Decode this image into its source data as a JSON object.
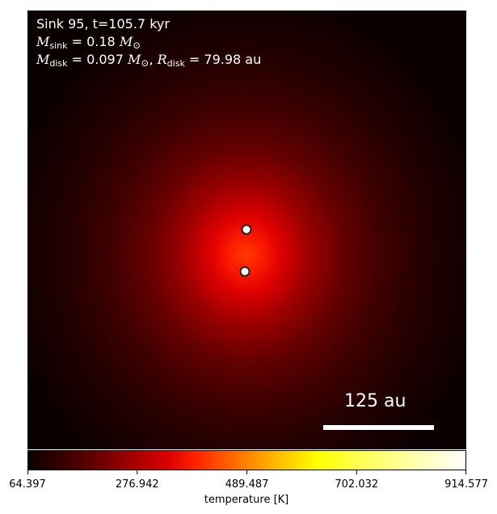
{
  "panel": {
    "sink_title": "Sink 95, t=105.7 kyr",
    "sink_mass": {
      "symbol": "M",
      "sub": "sink",
      "equals": " = 0.18 ",
      "unit": "M",
      "unit_sub": "⊙"
    },
    "disk_mass": {
      "symbol": "M",
      "sub": "disk",
      "equals": " = 0.097 ",
      "unit": "M",
      "unit_sub": "⊙",
      "sep": ", "
    },
    "disk_radius": {
      "symbol": "R",
      "sub": "disk",
      "equals": " = 79.98 au"
    },
    "scale_bar_label": "125 au"
  },
  "chart_data": {
    "type": "heatmap",
    "quantity": "temperature",
    "colormap": "hot",
    "colorbar": {
      "label": "temperature [K]",
      "min": 64.397,
      "max": 914.577,
      "ticks": [
        "64.397",
        "276.942",
        "489.487",
        "702.032",
        "914.577"
      ],
      "tick_values": [
        64.397,
        276.942,
        489.487,
        702.032,
        914.577
      ]
    },
    "sinks": [
      {
        "label": "sink-upper"
      },
      {
        "label": "sink-lower"
      }
    ],
    "text_color": "#ffffff"
  }
}
